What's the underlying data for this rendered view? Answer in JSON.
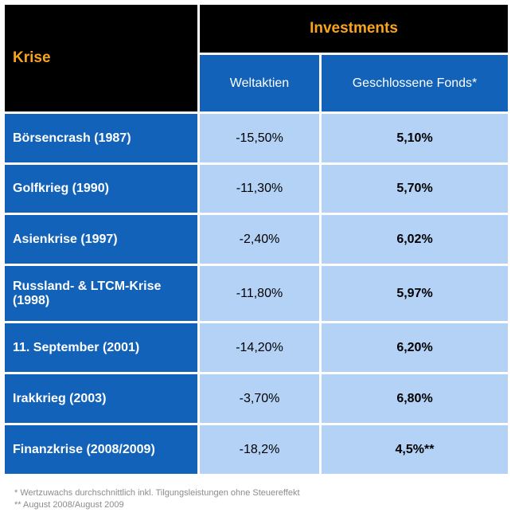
{
  "header": {
    "krise_label": "Krise",
    "investments_label": "Investments",
    "col_weltaktien": "Weltaktien",
    "col_fonds": "Geschlossene Fonds*"
  },
  "rows": [
    {
      "krise": "Börsencrash (1987)",
      "weltaktien": "-15,50%",
      "fonds": "5,10%"
    },
    {
      "krise": "Golfkrieg (1990)",
      "weltaktien": "-11,30%",
      "fonds": "5,70%"
    },
    {
      "krise": "Asienkrise (1997)",
      "weltaktien": "-2,40%",
      "fonds": "6,02%"
    },
    {
      "krise": "Russland- & LTCM-Krise (1998)",
      "weltaktien": "-11,80%",
      "fonds": "5,97%"
    },
    {
      "krise": "11. September (2001)",
      "weltaktien": "-14,20%",
      "fonds": "6,20%"
    },
    {
      "krise": "Irakkrieg (2003)",
      "weltaktien": "-3,70%",
      "fonds": "6,80%"
    },
    {
      "krise": "Finanzkrise (2008/2009)",
      "weltaktien": "-18,2%",
      "fonds": "4,5%**"
    }
  ],
  "footnotes": {
    "note1": "* Wertzuwachs durchschnittlich inkl. Tilgungsleistungen ohne Steuereffekt",
    "note2": "** August 2008/August 2009"
  }
}
